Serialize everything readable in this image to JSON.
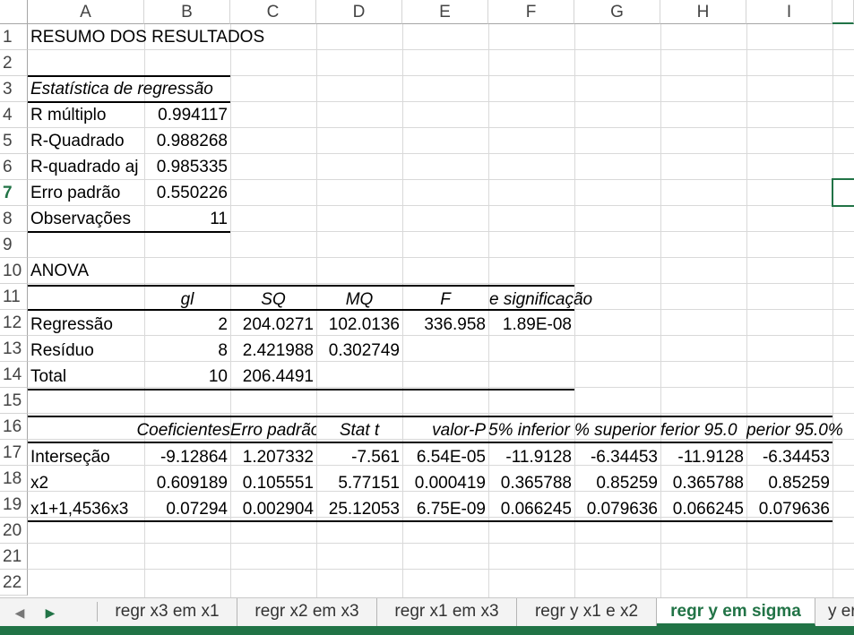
{
  "columns": [
    "A",
    "B",
    "C",
    "D",
    "E",
    "F",
    "G",
    "H",
    "I"
  ],
  "rows": [
    "1",
    "2",
    "3",
    "4",
    "5",
    "6",
    "7",
    "8",
    "9",
    "10",
    "11",
    "12",
    "13",
    "14",
    "15",
    "16",
    "17",
    "18",
    "19",
    "20",
    "21",
    "22"
  ],
  "active_row": "7",
  "cells": {
    "A1": "RESUMO DOS RESULTADOS",
    "A3": "Estatística de regressão",
    "A4": "R múltiplo",
    "B4": "0.994117",
    "A5": "R-Quadrado",
    "B5": "0.988268",
    "A6": "R-quadrado aj",
    "B6": "0.985335",
    "A7": "Erro padrão",
    "B7": "0.550226",
    "A8": "Observações",
    "B8": "11",
    "A10": "ANOVA",
    "B11": "gl",
    "C11": "SQ",
    "D11": "MQ",
    "E11": "F",
    "F11": "e significação",
    "A12": "Regressão",
    "B12": "2",
    "C12": "204.0271",
    "D12": "102.0136",
    "E12": "336.958",
    "F12": "1.89E-08",
    "A13": "Resíduo",
    "B13": "8",
    "C13": "2.421988",
    "D13": "0.302749",
    "A14": "Total",
    "B14": "10",
    "C14": "206.4491",
    "B16": "Coeficientes",
    "C16": "Erro padrão",
    "D16": "Stat t",
    "E16": "valor-P",
    "F16": "5% inferior",
    "G16": "% superior",
    "H16": "ferior 95.0",
    "I16": "perior 95.0%",
    "A17": "Interseção",
    "B17": "-9.12864",
    "C17": "1.207332",
    "D17": "-7.561",
    "E17": "6.54E-05",
    "F17": "-11.9128",
    "G17": "-6.34453",
    "H17": "-11.9128",
    "I17": "-6.34453",
    "A18": "x2",
    "B18": "0.609189",
    "C18": "0.105551",
    "D18": "5.77151",
    "E18": "0.000419",
    "F18": "0.365788",
    "G18": "0.85259",
    "H18": "0.365788",
    "I18": "0.85259",
    "A19": "x1+1,4536x3",
    "B19": "0.07294",
    "C19": "0.002904",
    "D19": "25.12053",
    "E19": "6.75E-09",
    "F19": "0.066245",
    "G19": "0.079636",
    "H19": "0.066245",
    "I19": "0.079636"
  },
  "sheet_tabs": [
    {
      "label": "regr x3 em x1",
      "active": false
    },
    {
      "label": "regr x2 em x3",
      "active": false
    },
    {
      "label": "regr x1 em x3",
      "active": false
    },
    {
      "label": "regr y x1 e x2",
      "active": false
    },
    {
      "label": "regr y em sigma",
      "active": true
    },
    {
      "label": "y er",
      "active": false
    }
  ],
  "accent_color": "#217346"
}
